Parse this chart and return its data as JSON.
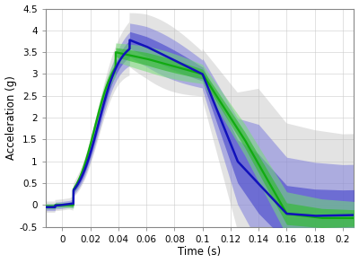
{
  "xlabel": "Time (s)",
  "ylabel": "Acceleration (g)",
  "xlim": [
    -0.012,
    0.208
  ],
  "ylim": [
    -0.5,
    4.5
  ],
  "xticks": [
    0,
    0.02,
    0.04,
    0.06,
    0.08,
    0.1,
    0.12,
    0.14,
    0.16,
    0.18,
    0.2
  ],
  "yticks": [
    -0.5,
    0,
    0.5,
    1.0,
    1.5,
    2.0,
    2.5,
    3.0,
    3.5,
    4.0,
    4.5
  ],
  "blue_color": "#1111BB",
  "blue_band1_color": "#4444CC",
  "blue_band2_color": "#7777DD",
  "blue_band3_color": "#AAAAEE",
  "green_color": "#11AA11",
  "green_band1_color": "#33BB33",
  "green_band2_color": "#77DD77",
  "gray_color": "#BBBBBB",
  "background_color": "#FFFFFF",
  "figsize": [
    4.0,
    2.93
  ],
  "dpi": 100
}
